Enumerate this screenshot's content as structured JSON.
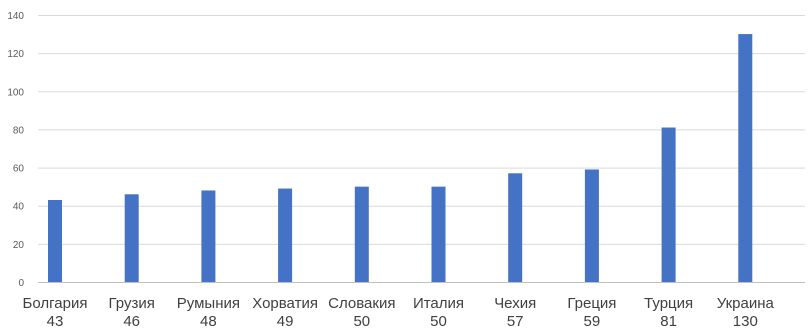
{
  "chart_data": {
    "type": "bar",
    "categories": [
      "Болгария",
      "Грузия",
      "Румыния",
      "Хорватия",
      "Словакия",
      "Италия",
      "Чехия",
      "Греция",
      "Турция",
      "Украина"
    ],
    "values": [
      43,
      46,
      48,
      49,
      50,
      50,
      57,
      59,
      81,
      130
    ],
    "value_labels": [
      "43",
      "46",
      "48",
      "49",
      "50",
      "50",
      "57",
      "59",
      "81",
      "130"
    ],
    "y_ticks": [
      "0",
      "20",
      "40",
      "60",
      "80",
      "100",
      "120",
      "140"
    ],
    "ylim": [
      0,
      140
    ],
    "grid": true,
    "legend": "none",
    "title": "",
    "xlabel": "",
    "ylabel": "",
    "colors": {
      "bar": "#4472c4"
    }
  }
}
